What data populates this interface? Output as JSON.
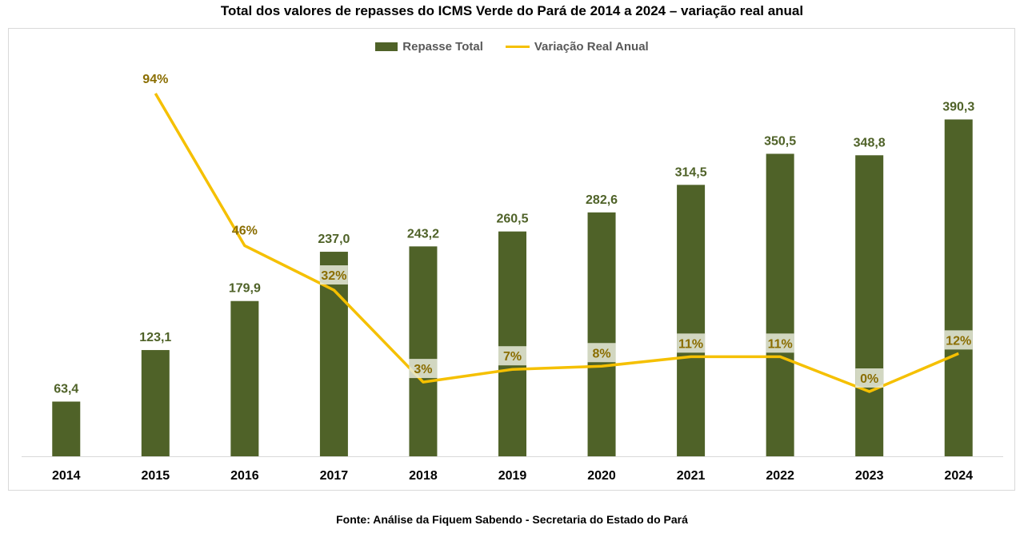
{
  "chart_data": {
    "type": "bar",
    "title": "Total dos valores de repasses do ICMS Verde do Pará de 2014 a 2024 – variação real anual",
    "categories": [
      "2014",
      "2015",
      "2016",
      "2017",
      "2018",
      "2019",
      "2020",
      "2021",
      "2022",
      "2023",
      "2024"
    ],
    "series": [
      {
        "name": "Repasse Total",
        "type": "bar",
        "color": "#4f6228",
        "values": [
          63.4,
          123.1,
          179.9,
          237.0,
          243.2,
          260.5,
          282.6,
          314.5,
          350.5,
          348.8,
          390.3
        ],
        "labels": [
          "63,4",
          "123,1",
          "179,9",
          "237,0",
          "243,2",
          "260,5",
          "282,6",
          "314,5",
          "350,5",
          "348,8",
          "390,3"
        ]
      },
      {
        "name": "Variação Real Anual",
        "type": "line",
        "color": "#f5c000",
        "values": [
          null,
          94,
          46,
          32,
          3,
          7,
          8,
          11,
          11,
          0,
          12
        ],
        "labels": [
          "",
          "94%",
          "46%",
          "32%",
          "3%",
          "7%",
          "8%",
          "11%",
          "11%",
          "0%",
          "12%"
        ]
      }
    ],
    "ylim": [
      0,
      400
    ],
    "y2lim": [
      -5,
      100
    ],
    "xlabel": "",
    "ylabel": "",
    "legend": "top-center",
    "grid": false
  },
  "legend": {
    "bar_label": "Repasse Total",
    "line_label": "Variação Real Anual"
  },
  "source": "Fonte: Análise da Fiquem Sabendo - Secretaria do Estado do Pará"
}
